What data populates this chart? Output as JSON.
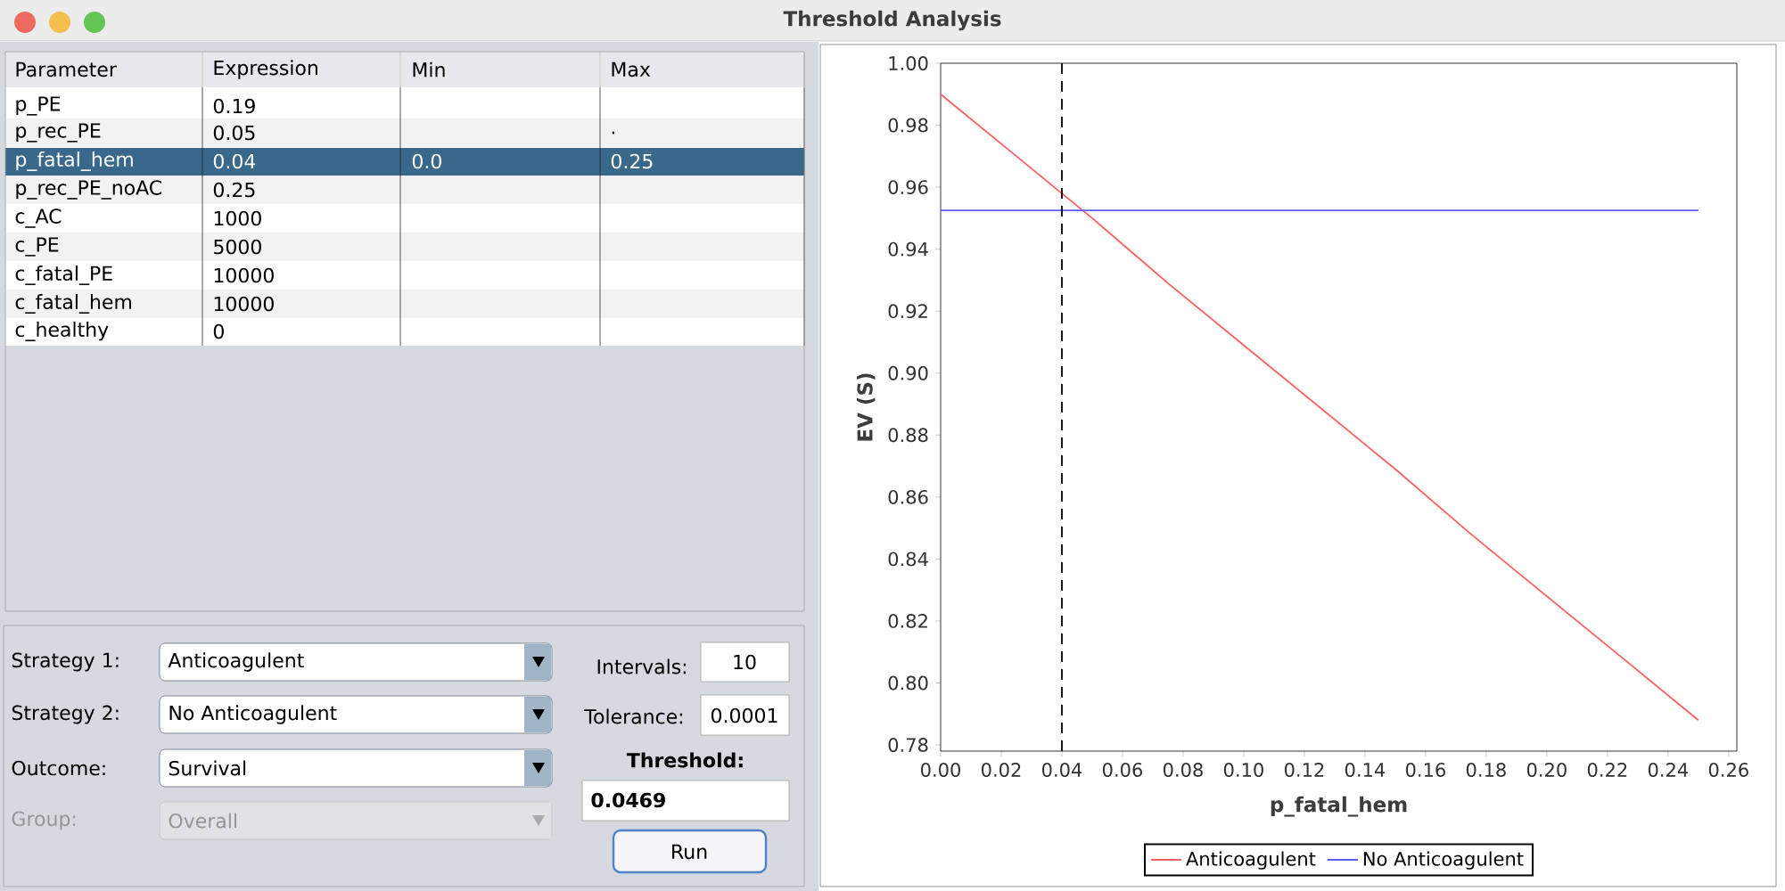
{
  "chart_data": [
    {
      "type": "other",
      "title": "Threshold Analysis",
      "annotations": [
        "Parameter",
        "Expression",
        "Min",
        "Max",
        "p_PE",
        "0.19",
        "p_rec_PE",
        "0.05",
        ".",
        "p_fatal_hem",
        "0.04",
        "0.0",
        "0.25",
        "p_rec_PE_noAC",
        "0.25",
        "c_AC",
        "1000",
        "c_PE",
        "5000",
        "c_fatal_PE",
        "10000",
        "c_fatal_hem",
        "10000",
        "c_healthy",
        "0",
        "Strategy 1:",
        "Anticoagulent",
        "Strategy 2:",
        "No Anticoagulent",
        "Outcome:",
        "Survival",
        "Group:",
        "Overall",
        "Intervals:",
        "10",
        "Tolerance:",
        "0.0001",
        "Threshold:",
        "0.0469",
        "Run"
      ]
    },
    {
      "type": "line",
      "xlabel": "p_fatal_hem",
      "ylabel": "EV (S)",
      "xlim": [
        0,
        0.2627
      ],
      "ylim": [
        0.778,
        1.0
      ],
      "xticks": [
        {
          "value": 0,
          "label": "0.00"
        },
        {
          "value": 0.02,
          "label": "0.02"
        },
        {
          "value": 0.04,
          "label": "0.04"
        },
        {
          "value": 0.06,
          "label": "0.06"
        },
        {
          "value": 0.08,
          "label": "0.08"
        },
        {
          "value": 0.1,
          "label": "0.10"
        },
        {
          "value": 0.12,
          "label": "0.12"
        },
        {
          "value": 0.14,
          "label": "0.14"
        },
        {
          "value": 0.16,
          "label": "0.16"
        },
        {
          "value": 0.18,
          "label": "0.18"
        },
        {
          "value": 0.2,
          "label": "0.20"
        },
        {
          "value": 0.22,
          "label": "0.22"
        },
        {
          "value": 0.24,
          "label": "0.24"
        },
        {
          "value": 0.26,
          "label": "0.26"
        }
      ],
      "yticks": [
        {
          "value": 0.78,
          "label": "0.78"
        },
        {
          "value": 0.8,
          "label": "0.80"
        },
        {
          "value": 0.82,
          "label": "0.82"
        },
        {
          "value": 0.84,
          "label": "0.84"
        },
        {
          "value": 0.86,
          "label": "0.86"
        },
        {
          "value": 0.88,
          "label": "0.88"
        },
        {
          "value": 0.9,
          "label": "0.90"
        },
        {
          "value": 0.92,
          "label": "0.92"
        },
        {
          "value": 0.94,
          "label": "0.94"
        },
        {
          "value": 0.96,
          "label": "0.96"
        },
        {
          "value": 0.98,
          "label": "0.98"
        },
        {
          "value": 1.0,
          "label": "1.00"
        }
      ],
      "legend": "bottom",
      "ref_lines": [
        {
          "axis": "x",
          "value": 0.04,
          "color": "#000000",
          "line_style": "dashed"
        }
      ],
      "series": [
        {
          "name": "Anticoagulent",
          "color": "#ff5f5f",
          "x": [
            0,
            0.025,
            0.05,
            0.075,
            0.1,
            0.125,
            0.15,
            0.175,
            0.2,
            0.225,
            0.25
          ],
          "values": [
            0.99,
            0.97,
            0.95,
            0.929,
            0.909,
            0.889,
            0.869,
            0.848,
            0.828,
            0.808,
            0.788
          ]
        },
        {
          "name": "No Anticoagulent",
          "color": "#5f5fff",
          "x": [
            0,
            0.025,
            0.05,
            0.075,
            0.1,
            0.125,
            0.15,
            0.175,
            0.2,
            0.225,
            0.25
          ],
          "values": [
            0.9525,
            0.9525,
            0.9525,
            0.9525,
            0.9525,
            0.9525,
            0.9525,
            0.9525,
            0.9525,
            0.9525,
            0.9525
          ]
        }
      ]
    }
  ]
}
